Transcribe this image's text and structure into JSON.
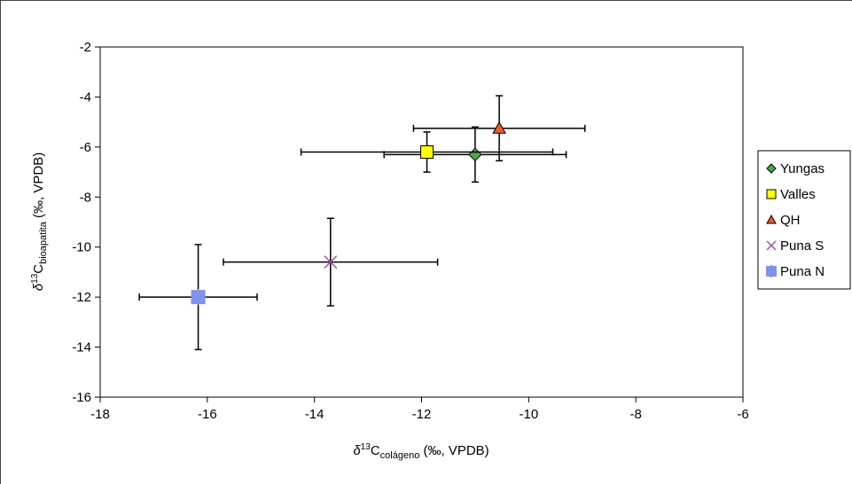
{
  "chart_data": {
    "type": "scatter",
    "x_label": {
      "prefix": "δ",
      "sup": "13",
      "main": "C",
      "sub": "colágeno",
      "suffix": " (‰, VPDB)"
    },
    "y_label": {
      "prefix": "δ",
      "sup": "13",
      "main": "C",
      "sub": "bioapatita",
      "suffix": " (‰, VPDB)"
    },
    "xlim": [
      -18,
      -6
    ],
    "xticks": [
      -18,
      -16,
      -14,
      -12,
      -10,
      -8,
      -6
    ],
    "ylim": [
      -16,
      -2
    ],
    "yticks": [
      -16,
      -14,
      -12,
      -10,
      -8,
      -6,
      -4,
      -2
    ],
    "grid": false,
    "legend": "right",
    "series": [
      {
        "name": "Yungas",
        "color": "#4aa84a",
        "marker": "diamond",
        "x": [
          -11.0
        ],
        "y": [
          -6.3
        ],
        "xerr": [
          1.7
        ],
        "yerr": [
          1.1
        ]
      },
      {
        "name": "Valles",
        "color": "#ffff00",
        "marker": "square",
        "x": [
          -11.9
        ],
        "y": [
          -6.2
        ],
        "xerr": [
          2.35
        ],
        "yerr": [
          0.8
        ]
      },
      {
        "name": "QH",
        "color": "#f05a28",
        "marker": "triangle",
        "x": [
          -10.55
        ],
        "y": [
          -5.25
        ],
        "xerr": [
          1.6
        ],
        "yerr": [
          1.3
        ]
      },
      {
        "name": "Puna S",
        "color": "#a050a8",
        "marker": "x",
        "x": [
          -13.7
        ],
        "y": [
          -10.6
        ],
        "xerr": [
          2.0
        ],
        "yerr": [
          1.75
        ]
      },
      {
        "name": "Puna N",
        "color": "#7f93e8",
        "marker": "star",
        "x": [
          -16.17
        ],
        "y": [
          -12.0
        ],
        "xerr": [
          1.1
        ],
        "yerr": [
          2.1
        ]
      }
    ]
  }
}
